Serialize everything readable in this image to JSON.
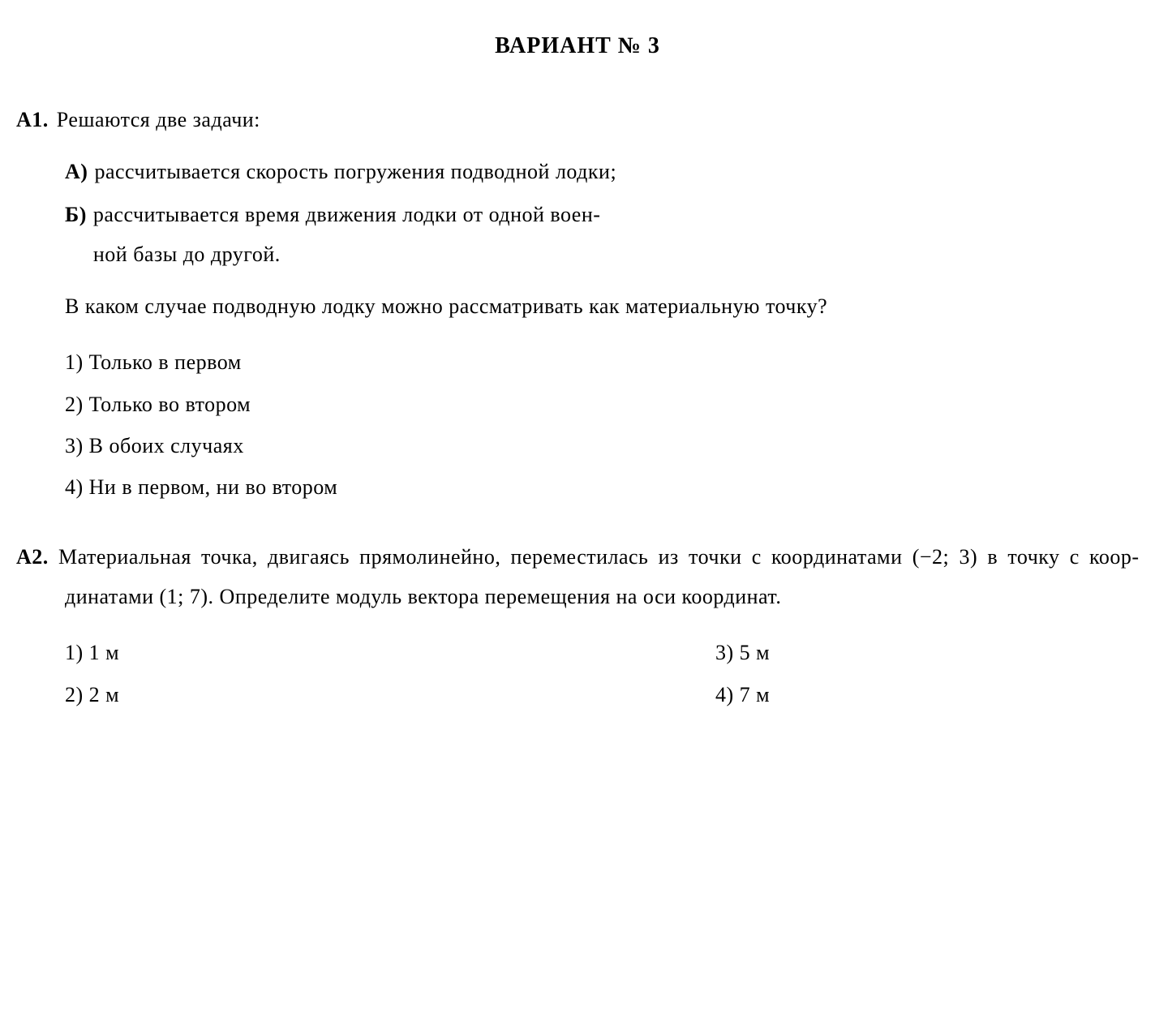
{
  "title": "ВАРИАНТ № 3",
  "q1": {
    "number": "А1.",
    "intro": "Решаются две задачи:",
    "subA_label": "А)",
    "subA_text": "рассчитывается скорость погружения подводной лодки;",
    "subB_label": "Б)",
    "subB_text_line1": "рассчитывается время движения лодки от одной воен-",
    "subB_text_line2": "ной базы до другой.",
    "body": "В каком случае подводную лодку можно рассматривать как материальную точку?",
    "answers": {
      "a1": "1) Только в первом",
      "a2": "2) Только во втором",
      "a3": "3) В обоих случаях",
      "a4": "4) Ни в первом, ни во втором"
    }
  },
  "q2": {
    "number": "А2.",
    "text": "Материальная точка, двигаясь прямолинейно, перемес­тилась из точки с координатами (−2; 3) в точку с коор­динатами (1; 7). Определите модуль вектора перемеще­ния на оси координат.",
    "answers": {
      "a1": "1) 1 м",
      "a2": "2) 2 м",
      "a3": "3) 5 м",
      "a4": "4) 7 м"
    }
  },
  "style": {
    "font_size_body": 26,
    "font_size_title": 28,
    "line_height": 1.9,
    "text_color": "#000000",
    "background_color": "#ffffff",
    "font_family": "Georgia, Times New Roman, serif"
  }
}
